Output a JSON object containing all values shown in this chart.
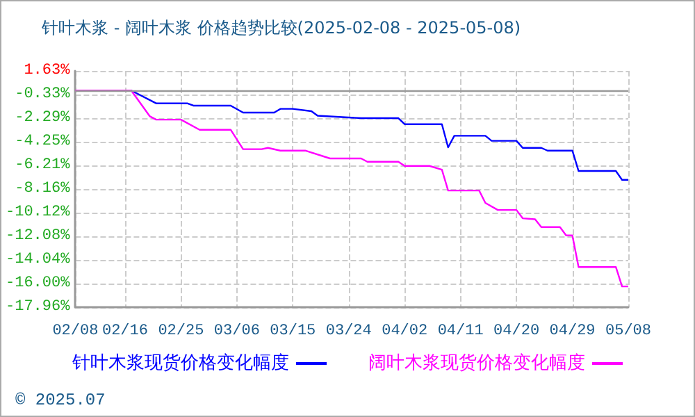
{
  "chart_data": {
    "type": "line",
    "title": "针叶木浆 - 阔叶木浆 价格趋势比较(2025-02-08 - 2025-05-08)",
    "annotations": [
      "© 2025.07"
    ],
    "xlim": [
      "2025-02-08",
      "2025-05-08"
    ],
    "xticks": [
      {
        "value": "2025-02-08",
        "label": "02/08"
      },
      {
        "value": "2025-02-16",
        "label": "02/16"
      },
      {
        "value": "2025-02-25",
        "label": "02/25"
      },
      {
        "value": "2025-03-06",
        "label": "03/06"
      },
      {
        "value": "2025-03-15",
        "label": "03/15"
      },
      {
        "value": "2025-03-24",
        "label": "03/24"
      },
      {
        "value": "2025-04-02",
        "label": "04/02"
      },
      {
        "value": "2025-04-11",
        "label": "04/11"
      },
      {
        "value": "2025-04-20",
        "label": "04/20"
      },
      {
        "value": "2025-04-29",
        "label": "04/29"
      },
      {
        "value": "2025-05-08",
        "label": "05/08"
      }
    ],
    "ylim": [
      -17.96,
      1.63
    ],
    "yticks": [
      {
        "value": 1.63,
        "label": "1.63%"
      },
      {
        "value": -0.33,
        "label": "-0.33%"
      },
      {
        "value": -2.29,
        "label": "-2.29%"
      },
      {
        "value": -4.25,
        "label": "-4.25%"
      },
      {
        "value": -6.21,
        "label": "-6.21%"
      },
      {
        "value": -8.16,
        "label": "-8.16%"
      },
      {
        "value": -10.12,
        "label": "-10.12%"
      },
      {
        "value": -12.08,
        "label": "-12.08%"
      },
      {
        "value": -14.04,
        "label": "-14.04%"
      },
      {
        "value": -16.0,
        "label": "-16.00%"
      },
      {
        "value": -17.96,
        "label": "-17.96%"
      }
    ],
    "ref_lines": [
      {
        "axis": "y",
        "value": 0,
        "color": "#999999"
      }
    ],
    "grid": true,
    "legend": "bottom",
    "marker": "none",
    "line_style": "solid",
    "series": [
      {
        "name": "针叶木浆现货价格变化幅度",
        "color": "#0000ff",
        "x": [
          "2025-02-11",
          "2025-02-17",
          "2025-02-21",
          "2025-02-26",
          "2025-02-27",
          "2025-03-05",
          "2025-03-07",
          "2025-03-12",
          "2025-03-13",
          "2025-03-15",
          "2025-03-18",
          "2025-03-19",
          "2025-03-26",
          "2025-04-01",
          "2025-04-02",
          "2025-04-08",
          "2025-04-09",
          "2025-04-10",
          "2025-04-15",
          "2025-04-16",
          "2025-04-20",
          "2025-04-21",
          "2025-04-24",
          "2025-04-25",
          "2025-04-29",
          "2025-04-30",
          "2025-05-06",
          "2025-05-07",
          "2025-05-08"
        ],
        "values": [
          0,
          0,
          -1.06,
          -1.06,
          -1.25,
          -1.25,
          -1.83,
          -1.83,
          -1.52,
          -1.52,
          -1.71,
          -2.09,
          -2.29,
          -2.29,
          -2.79,
          -2.79,
          -4.71,
          -3.75,
          -3.75,
          -4.17,
          -4.17,
          -4.75,
          -4.75,
          -4.98,
          -4.98,
          -6.67,
          -6.67,
          -7.4,
          -7.4
        ]
      },
      {
        "name": "阔叶木浆现货价格变化幅度",
        "color": "#ff00ff",
        "x": [
          "2025-02-08",
          "2025-02-17",
          "2025-02-20",
          "2025-02-21",
          "2025-02-25",
          "2025-02-28",
          "2025-03-05",
          "2025-03-07",
          "2025-03-10",
          "2025-03-11",
          "2025-03-13",
          "2025-03-17",
          "2025-03-21",
          "2025-03-26",
          "2025-03-27",
          "2025-04-01",
          "2025-04-02",
          "2025-04-06",
          "2025-04-08",
          "2025-04-09",
          "2025-04-14",
          "2025-04-15",
          "2025-04-17",
          "2025-04-20",
          "2025-04-21",
          "2025-04-23",
          "2025-04-24",
          "2025-04-27",
          "2025-04-28",
          "2025-04-29",
          "2025-04-30",
          "2025-05-06",
          "2025-05-07",
          "2025-05-08"
        ],
        "values": [
          0,
          0,
          -2.14,
          -2.41,
          -2.41,
          -3.25,
          -3.25,
          -4.86,
          -4.86,
          -4.75,
          -4.98,
          -4.98,
          -5.63,
          -5.63,
          -5.9,
          -5.9,
          -6.25,
          -6.25,
          -6.56,
          -8.29,
          -8.29,
          -9.32,
          -9.9,
          -9.9,
          -10.59,
          -10.67,
          -11.32,
          -11.32,
          -12.01,
          -12.01,
          -14.63,
          -14.63,
          -16.24,
          -16.24
        ]
      }
    ]
  }
}
